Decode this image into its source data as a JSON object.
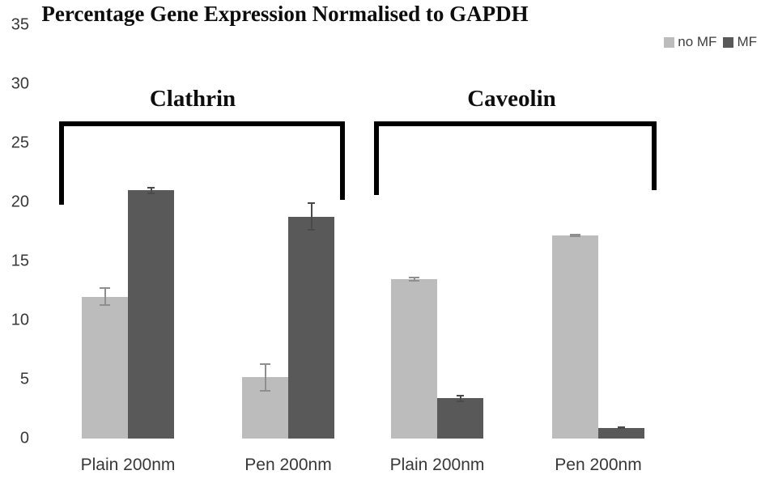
{
  "page": {
    "background": "#ffffff"
  },
  "chart_data": {
    "type": "bar",
    "title": "Percentage Gene Expression Normalised to GAPDH",
    "xlabel": "",
    "ylabel": "",
    "ylim": [
      0,
      35
    ],
    "yticks": [
      0,
      5,
      10,
      15,
      20,
      25,
      30,
      35
    ],
    "gridlines": false,
    "legend_position": "top-right",
    "series": [
      {
        "name": "no MF",
        "color": "#bcbcbc",
        "error_color": "#8f8f8f"
      },
      {
        "name": "MF",
        "color": "#595959",
        "error_color": "#4a4a4a"
      }
    ],
    "groups": [
      {
        "label": "Clathrin",
        "categories": [
          "Plain 200nm",
          "Pen 200nm"
        ],
        "series": [
          {
            "name": "no MF",
            "values": [
              12.0,
              5.2
            ],
            "errors": [
              0.8,
              1.2
            ]
          },
          {
            "name": "MF",
            "values": [
              21.0,
              18.8
            ],
            "errors": [
              0.3,
              1.2
            ]
          }
        ]
      },
      {
        "label": "Caveolin",
        "categories": [
          "Plain 200nm",
          "Pen 200nm"
        ],
        "series": [
          {
            "name": "no MF",
            "values": [
              13.5,
              17.2
            ],
            "errors": [
              0.2,
              0.15
            ]
          },
          {
            "name": "MF",
            "values": [
              3.4,
              0.9
            ],
            "errors": [
              0.3,
              0.1
            ]
          }
        ]
      }
    ]
  }
}
